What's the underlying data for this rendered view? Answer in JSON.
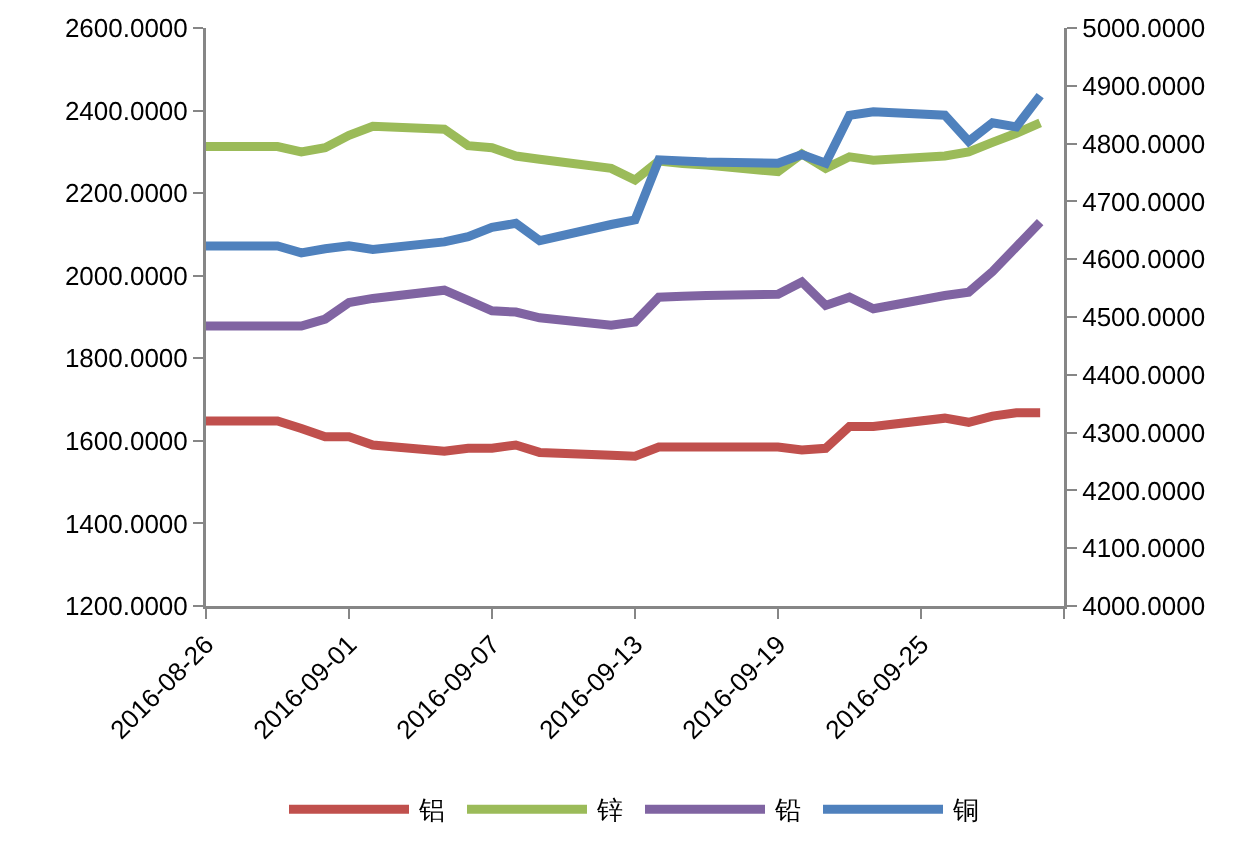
{
  "chart_data": {
    "type": "line",
    "x": [
      "2016-08-26",
      "2016-08-29",
      "2016-08-30",
      "2016-08-31",
      "2016-09-01",
      "2016-09-02",
      "2016-09-05",
      "2016-09-06",
      "2016-09-07",
      "2016-09-08",
      "2016-09-09",
      "2016-09-12",
      "2016-09-13",
      "2016-09-14",
      "2016-09-15",
      "2016-09-16",
      "2016-09-19",
      "2016-09-20",
      "2016-09-21",
      "2016-09-22",
      "2016-09-23",
      "2016-09-26",
      "2016-09-27",
      "2016-09-28",
      "2016-09-29",
      "2016-09-30"
    ],
    "series": [
      {
        "name": "铝",
        "color": "#c0504d",
        "values": [
          1648,
          1648,
          1630,
          1610,
          1610,
          1590,
          1575,
          1582,
          1582,
          1590,
          1572,
          1565,
          1563,
          1585,
          1585,
          1585,
          1585,
          1578,
          1582,
          1635,
          1635,
          1655,
          1645,
          1660,
          1668,
          1668
        ]
      },
      {
        "name": "锌",
        "color": "#9bbb59",
        "values": [
          2313,
          2313,
          2300,
          2310,
          2340,
          2362,
          2355,
          2315,
          2310,
          2290,
          2282,
          2260,
          2232,
          2278,
          2272,
          2268,
          2252,
          2295,
          2260,
          2288,
          2280,
          2290,
          2300,
          2323,
          2345,
          2370
        ]
      },
      {
        "name": "铅",
        "color": "#8064a2",
        "values": [
          1878,
          1878,
          1878,
          1895,
          1935,
          1945,
          1965,
          1940,
          1915,
          1912,
          1898,
          1880,
          1888,
          1948,
          1950,
          1952,
          1955,
          1985,
          1928,
          1948,
          1920,
          1952,
          1960,
          2010,
          2070,
          2130
        ]
      },
      {
        "name": "铜",
        "color": "#4f81bd",
        "axis": "y2",
        "values": [
          4623,
          4623,
          4611,
          4618,
          4623,
          4617,
          4630,
          4639,
          4655,
          4662,
          4632,
          4660,
          4668,
          4772,
          4770,
          4768,
          4766,
          4781,
          4766,
          4849,
          4855,
          4849,
          4804,
          4836,
          4829,
          4883
        ]
      }
    ],
    "xlim": [
      "2016-08-26",
      "2016-10-01"
    ],
    "xticks": [
      {
        "value": "2016-08-26",
        "label": "2016-08-26"
      },
      {
        "value": "2016-09-01",
        "label": "2016-09-01"
      },
      {
        "value": "2016-09-07",
        "label": "2016-09-07"
      },
      {
        "value": "2016-09-13",
        "label": "2016-09-13"
      },
      {
        "value": "2016-09-19",
        "label": "2016-09-19"
      },
      {
        "value": "2016-09-25",
        "label": "2016-09-25"
      },
      {
        "value": "2016-10-01",
        "label": null
      }
    ],
    "ylim": [
      1200,
      2600
    ],
    "yticks": [
      {
        "value": 1200,
        "label": "1200.0000"
      },
      {
        "value": 1400,
        "label": "1400.0000"
      },
      {
        "value": 1600,
        "label": "1600.0000"
      },
      {
        "value": 1800,
        "label": "1800.0000"
      },
      {
        "value": 2000,
        "label": "2000.0000"
      },
      {
        "value": 2200,
        "label": "2200.0000"
      },
      {
        "value": 2400,
        "label": "2400.0000"
      },
      {
        "value": 2600,
        "label": "2600.0000"
      }
    ],
    "y2lim": [
      4000,
      5000
    ],
    "y2ticks": [
      {
        "value": 4000,
        "label": "4000.0000"
      },
      {
        "value": 4100,
        "label": "4100.0000"
      },
      {
        "value": 4200,
        "label": "4200.0000"
      },
      {
        "value": 4300,
        "label": "4300.0000"
      },
      {
        "value": 4400,
        "label": "4400.0000"
      },
      {
        "value": 4500,
        "label": "4500.0000"
      },
      {
        "value": 4600,
        "label": "4600.0000"
      },
      {
        "value": 4700,
        "label": "4700.0000"
      },
      {
        "value": 4800,
        "label": "4800.0000"
      },
      {
        "value": 4900,
        "label": "4900.0000"
      },
      {
        "value": 5000,
        "label": "5000.0000"
      }
    ],
    "grid": false,
    "legend": "bottom",
    "marker": "none",
    "line_style": "solid"
  }
}
